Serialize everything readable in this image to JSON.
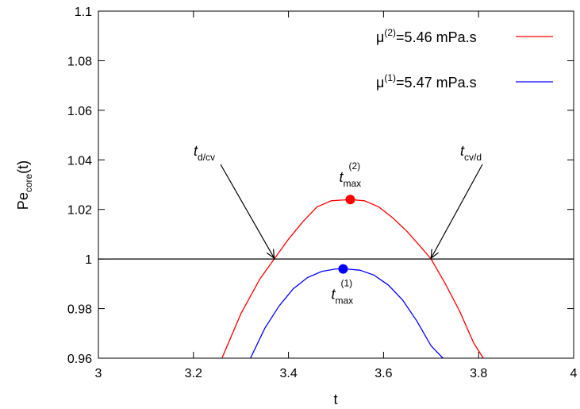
{
  "chart_data": {
    "type": "line",
    "title": "",
    "xlabel": "t",
    "ylabel": {
      "main": "Pe",
      "sub": "core",
      "suffix": "(t)"
    },
    "xlim": [
      3,
      4
    ],
    "ylim": [
      0.96,
      1.1
    ],
    "x_ticks": [
      "3",
      "3.2",
      "3.4",
      "3.6",
      "3.8",
      "4"
    ],
    "y_ticks": [
      "0.96",
      "0.98",
      "1",
      "1.02",
      "1.04",
      "1.06",
      "1.08",
      "1.1"
    ],
    "x_tick_values": [
      3,
      3.2,
      3.4,
      3.6,
      3.8,
      4
    ],
    "y_tick_values": [
      0.96,
      0.98,
      1.0,
      1.02,
      1.04,
      1.06,
      1.08,
      1.1
    ],
    "grid": false,
    "legend_position": "top-right",
    "series": [
      {
        "name": "μ(2)=5.46 mPa.s",
        "legend": {
          "mu": "μ",
          "sup": "(2)",
          "value": "=5.46 mPa.s"
        },
        "color": "#ff0000",
        "x": [
          3.26,
          3.3,
          3.34,
          3.37,
          3.4,
          3.43,
          3.46,
          3.49,
          3.53,
          3.56,
          3.59,
          3.62,
          3.65,
          3.68,
          3.7,
          3.73,
          3.76,
          3.79,
          3.81
        ],
        "y": [
          0.96,
          0.978,
          0.992,
          1.0,
          1.008,
          1.015,
          1.021,
          1.0235,
          1.024,
          1.0235,
          1.021,
          1.0165,
          1.011,
          1.0045,
          1.0,
          0.99,
          0.979,
          0.966,
          0.96
        ]
      },
      {
        "name": "μ(1)=5.47 mPa.s",
        "legend": {
          "mu": "μ",
          "sup": "(1)",
          "value": "=5.47 mPa.s"
        },
        "color": "#0000ff",
        "x": [
          3.32,
          3.35,
          3.38,
          3.41,
          3.44,
          3.47,
          3.5,
          3.52,
          3.55,
          3.58,
          3.61,
          3.64,
          3.67,
          3.7,
          3.725
        ],
        "y": [
          0.96,
          0.972,
          0.981,
          0.988,
          0.9925,
          0.995,
          0.996,
          0.996,
          0.9955,
          0.9935,
          0.9895,
          0.9835,
          0.975,
          0.965,
          0.96
        ]
      },
      {
        "name": "",
        "color": "#000000",
        "x": [
          3,
          4
        ],
        "y": [
          1,
          1
        ]
      }
    ],
    "points": [
      {
        "label": "t",
        "sub": "max",
        "sup": "(2)",
        "x": 3.53,
        "y": 1.024,
        "color": "#ff0000"
      },
      {
        "label": "t",
        "sub": "max",
        "sup": "(1)",
        "x": 3.515,
        "y": 0.996,
        "color": "#0000ff"
      }
    ],
    "annotations": [
      {
        "label": "t",
        "sub": "d/cv",
        "x": 3.37,
        "y": 1.0
      },
      {
        "label": "t",
        "sub": "cv/d",
        "x": 3.7,
        "y": 1.0
      }
    ]
  }
}
